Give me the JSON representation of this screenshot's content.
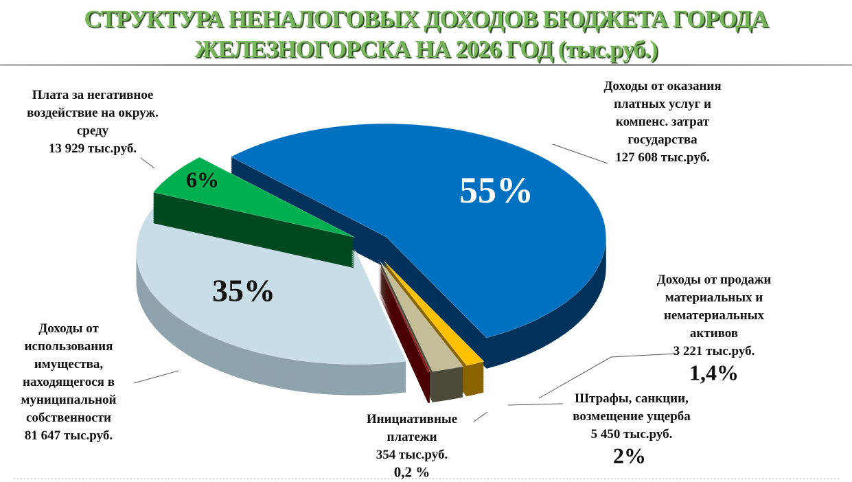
{
  "chart_data": {
    "type": "pie3d",
    "title": "СТРУКТУРА НЕНАЛОГОВЫХ ДОХОДОВ БЮДЖЕТА ГОРОДА\nЖЕЛЕЗНОГОРСКА  НА 2026 ГОД (тыс.руб.)",
    "categories": [
      "Доходы от оказания\nплатных услуг и\nкомпенс. затрат\nгосударства",
      "Доходы от продажи\nматериальных и\nнематериальных\nактивов",
      "Штрафы, санкции,\nвозмещение ущерба",
      "Инициативные\nплатежи",
      "Доходы от\nиспользования\nимущества,\nнаходящегося в\nмуниципальной\nсобственности",
      "Плата за негативное\nвоздействие на окруж.\nсреду"
    ],
    "values": [
      127608,
      3221,
      5450,
      354,
      81647,
      13929
    ],
    "value_labels": [
      "127 608 тыс.руб.",
      "3 221 тыс.руб.",
      "5 450 тыс.руб.",
      "354 тыс.руб.",
      "81 647 тыс.руб.",
      "13 929 тыс.руб."
    ],
    "shares": [
      55,
      1.4,
      2,
      0.2,
      35,
      6
    ],
    "share_labels": [
      "55%",
      "1,4%",
      "2%",
      "0,2 %",
      "35%",
      "6%"
    ],
    "colors": [
      "#0070c0",
      "#ffc000",
      "#c4bd97",
      "#8b0000",
      "#c9dde6",
      "#00b050"
    ],
    "side_colors": [
      "#00325c",
      "#8a6400",
      "#4e4a3a",
      "#4a0000",
      "#8fa3ad",
      "#004820"
    ]
  }
}
